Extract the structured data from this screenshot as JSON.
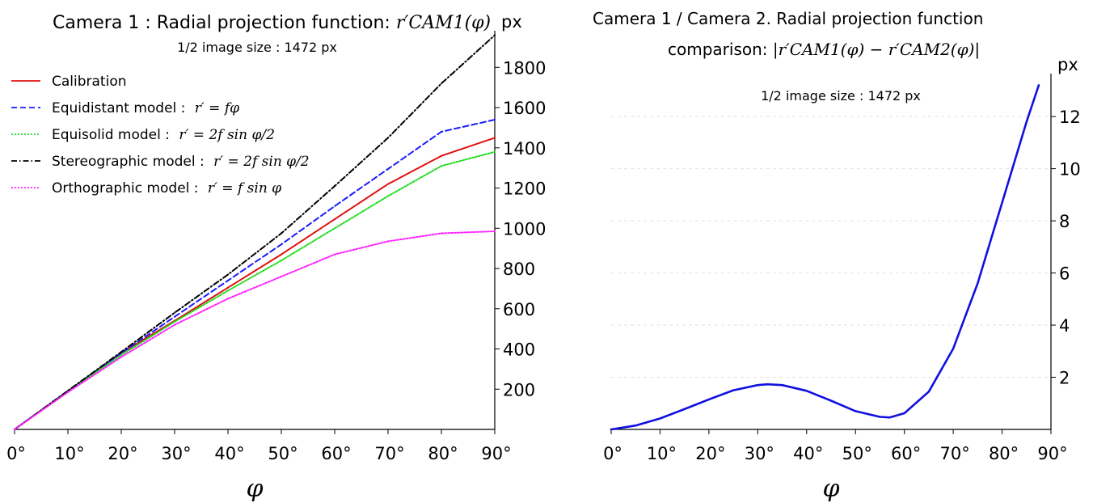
{
  "chart_data": [
    {
      "type": "line",
      "title_prefix": "Camera 1 :  Radial projection function: ",
      "title_math": "r′CAM1(φ)",
      "subtitle": "1/2 image size : 1472 px",
      "xlabel": "φ",
      "ylabel": "px",
      "xlim": [
        0,
        90
      ],
      "ylim": [
        0,
        1950
      ],
      "x_ticks": [
        0,
        10,
        20,
        30,
        40,
        50,
        60,
        70,
        80,
        90
      ],
      "x_tick_labels": [
        "0°",
        "10°",
        "20°",
        "30°",
        "40°",
        "50°",
        "60°",
        "70°",
        "80°",
        "90°"
      ],
      "y_ticks": [
        200,
        400,
        600,
        800,
        1000,
        1200,
        1400,
        1600,
        1800
      ],
      "y_tick_labels": [
        "200",
        "400",
        "600",
        "800",
        "1000",
        "1200",
        "1400",
        "1600",
        "1800"
      ],
      "y_axis_side": "right",
      "legend_placement": "top-left",
      "x": [
        0,
        10,
        20,
        30,
        40,
        50,
        60,
        70,
        80,
        90
      ],
      "series": [
        {
          "name": "Calibration",
          "legend_math": "",
          "color": "#e01010",
          "dash": "solid",
          "values": [
            0,
            190,
            380,
            540,
            705,
            870,
            1045,
            1220,
            1360,
            1450
          ]
        },
        {
          "name": "Equidistant model : ",
          "legend_math": "r′ = fφ",
          "color": "#1a1aff",
          "dash": "dashed",
          "values": [
            0,
            190,
            380,
            560,
            740,
            920,
            1110,
            1295,
            1480,
            1540
          ]
        },
        {
          "name": "Equisolid model : ",
          "legend_math": "r′ = 2f sin φ/2",
          "color": "#22dd22",
          "dash": "dotted",
          "values": [
            0,
            188,
            370,
            535,
            690,
            840,
            1000,
            1160,
            1310,
            1380
          ]
        },
        {
          "name": "Stereographic model : ",
          "legend_math": "r′ = 2f sin φ/2",
          "color": "#000000",
          "dash": "dashdot",
          "values": [
            0,
            192,
            385,
            580,
            770,
            975,
            1210,
            1450,
            1720,
            1960
          ]
        },
        {
          "name": "Orthographic model : ",
          "legend_math": "r′ = f sin φ",
          "color": "#ff22ff",
          "dash": "dotted",
          "values": [
            0,
            185,
            360,
            520,
            650,
            760,
            870,
            935,
            975,
            985
          ]
        }
      ]
    },
    {
      "type": "line",
      "title_line1": "Camera 1 / Camera 2. Radial projection function",
      "title_line2_prefix": "comparison: ",
      "title_line2_math": "|r′CAM1(φ) − r′CAM2(φ)|",
      "subtitle": "1/2 image size : 1472 px",
      "xlabel": "φ",
      "ylabel": "px",
      "xlim": [
        0,
        90
      ],
      "ylim": [
        0,
        13.4
      ],
      "x_ticks": [
        0,
        10,
        20,
        30,
        40,
        50,
        60,
        70,
        80,
        90
      ],
      "x_tick_labels": [
        "0°",
        "10°",
        "20°",
        "30°",
        "40°",
        "50°",
        "60°",
        "70°",
        "80°",
        "90°"
      ],
      "y_ticks": [
        2,
        4,
        6,
        8,
        10,
        12
      ],
      "y_tick_labels": [
        "2",
        "4",
        "6",
        "8",
        "10",
        "12"
      ],
      "y_axis_side": "right",
      "grid": true,
      "series": [
        {
          "color": "#1010e0",
          "x": [
            0,
            5,
            10,
            15,
            20,
            25,
            30,
            32,
            35,
            40,
            45,
            50,
            55,
            57,
            60,
            65,
            70,
            75,
            80,
            85,
            87.5
          ],
          "values": [
            0,
            0.15,
            0.42,
            0.78,
            1.15,
            1.5,
            1.7,
            1.73,
            1.7,
            1.48,
            1.1,
            0.7,
            0.48,
            0.46,
            0.62,
            1.45,
            3.1,
            5.6,
            8.7,
            11.8,
            13.2
          ]
        }
      ]
    }
  ]
}
